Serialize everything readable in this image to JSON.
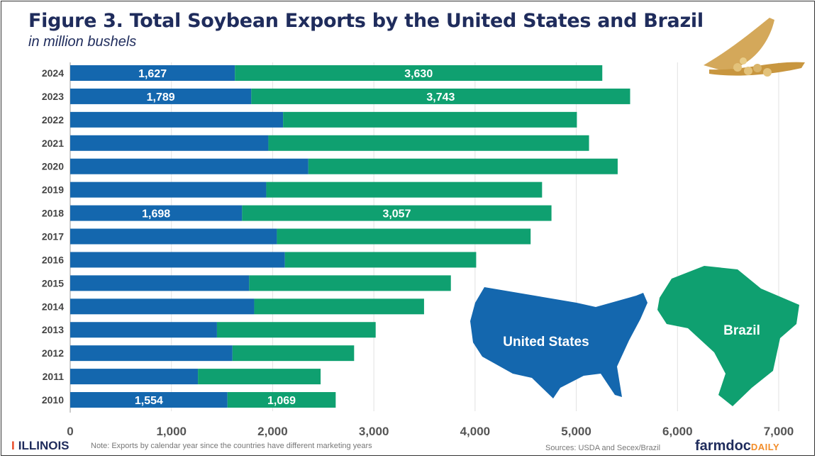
{
  "chart_data": {
    "type": "bar",
    "orientation": "horizontal",
    "stacked": true,
    "title": "Figure 3. Total Soybean Exports by the United States and Brazil",
    "subtitle": "in million bushels",
    "categories": [
      "2024",
      "2023",
      "2022",
      "2021",
      "2020",
      "2019",
      "2018",
      "2017",
      "2016",
      "2015",
      "2014",
      "2013",
      "2012",
      "2011",
      "2010"
    ],
    "series": [
      {
        "name": "United States",
        "color": "#1467ae",
        "values": [
          1627,
          1789,
          2103,
          1958,
          2353,
          1937,
          1698,
          2042,
          2121,
          1768,
          1818,
          1450,
          1603,
          1262,
          1554
        ]
      },
      {
        "name": "Brazil",
        "color": "#0fa070",
        "values": [
          3630,
          3743,
          2903,
          3168,
          3056,
          2725,
          3057,
          2507,
          1890,
          1993,
          1678,
          1568,
          1202,
          1212,
          1069
        ]
      }
    ],
    "data_labels": [
      {
        "category": "2024",
        "us": "1,627",
        "brazil": "3,630"
      },
      {
        "category": "2023",
        "us": "1,789",
        "brazil": "3,743"
      },
      {
        "category": "2018",
        "us": "1,698",
        "brazil": "3,057"
      },
      {
        "category": "2010",
        "us": "1,554",
        "brazil": "1,069"
      }
    ],
    "xlim": [
      0,
      7000
    ],
    "xticks": [
      0,
      1000,
      2000,
      3000,
      4000,
      5000,
      6000,
      7000
    ],
    "xtick_labels": [
      "0",
      "1,000",
      "2,000",
      "3,000",
      "4,000",
      "5,000",
      "6,000",
      "7,000"
    ],
    "grid": true,
    "legend": "map illustrations bottom-right"
  },
  "legend_labels": {
    "us": "United States",
    "brazil": "Brazil"
  },
  "footer": {
    "logo": "ILLINOIS",
    "note": "Note: Exports by calendar year since the countries have different marketing years",
    "sources": "Sources: USDA and Secex/Brazil",
    "brand_main": "farmdoc",
    "brand_sub": "DAILY"
  },
  "icons": {
    "illustration": "soybean-pod-icon",
    "logo": "illinois-block-i-icon"
  }
}
